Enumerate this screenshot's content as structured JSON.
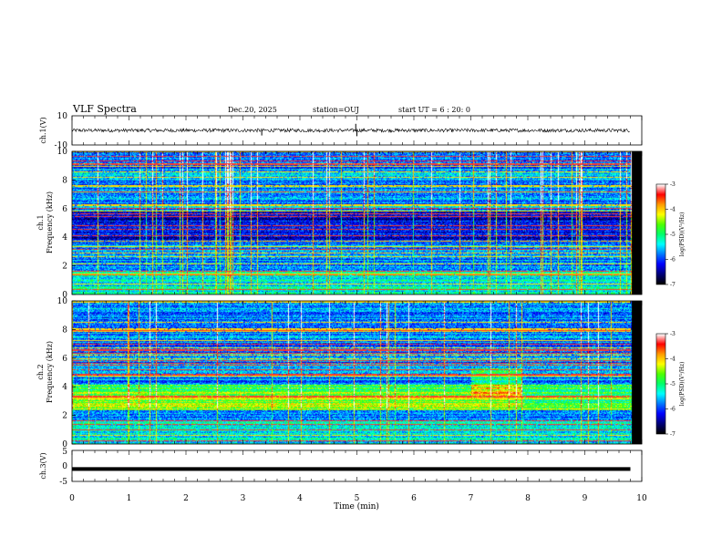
{
  "header": {
    "title": "VLF Spectra",
    "date": "Dec.20, 2025",
    "station": "station=OUJ",
    "start": "start UT =  6 : 20: 0"
  },
  "colors": {
    "spectrogram_ramp": [
      "#000000",
      "#00007a",
      "#0000ff",
      "#0078ff",
      "#00ffff",
      "#00ff6a",
      "#4fff00",
      "#ffff00",
      "#ff9a00",
      "#ff0000",
      "#ffffff"
    ],
    "waveform": "#000000"
  },
  "chart_data": [
    {
      "type": "line",
      "panel": "ch1-waveform",
      "ylabel": "ch.1(V)",
      "ylim": [
        -10,
        10
      ],
      "yticks": [
        "10",
        "-10"
      ],
      "xlim": [
        0,
        10
      ],
      "baseline_v": 0,
      "amplitude_v": 1.2,
      "spikes": [
        {
          "t": 3.33,
          "v": -3.5
        },
        {
          "t": 4.98,
          "v": 4.5
        },
        {
          "t": 5.0,
          "v": -4.0
        }
      ]
    },
    {
      "type": "heatmap",
      "panel": "ch1-spectrogram",
      "ylabel": "ch.1\nFrequency (kHz)",
      "ylim": [
        0,
        10
      ],
      "yticks": [
        "0",
        "2",
        "4",
        "6",
        "8",
        "10"
      ],
      "xlim": [
        0,
        10
      ],
      "data_end_min": 9.8,
      "colorbar": {
        "label": "log(PSD)(V²/Hz)",
        "range": [
          -7,
          -3
        ],
        "ticks": [
          "-3",
          "-4",
          "-5",
          "-6",
          "-7"
        ]
      }
    },
    {
      "type": "heatmap",
      "panel": "ch2-spectrogram",
      "ylabel": "ch.2\nFrequency (kHz)",
      "ylim": [
        0,
        10
      ],
      "yticks": [
        "0",
        "2",
        "4",
        "6",
        "8",
        "10"
      ],
      "xlim": [
        0,
        10
      ],
      "data_end_min": 9.8,
      "colorbar": {
        "label": "log(PSD)(V²/Hz)",
        "range": [
          -7,
          -3
        ],
        "ticks": [
          "-3",
          "-4",
          "-5",
          "-6",
          "-7"
        ]
      }
    },
    {
      "type": "line",
      "panel": "ch3-waveform",
      "ylabel": "ch.3(V)",
      "ylim": [
        -5,
        5
      ],
      "yticks": [
        "5",
        "0",
        "-5"
      ],
      "xlim": [
        0,
        10
      ],
      "baseline_v": -1.0,
      "amplitude_v": 0.15,
      "spikes": []
    }
  ],
  "time_axis": {
    "xlabel": "Time (min)",
    "range": [
      0,
      10
    ],
    "ticks": [
      "0",
      "1",
      "2",
      "3",
      "4",
      "5",
      "6",
      "7",
      "8",
      "9",
      "10"
    ]
  }
}
